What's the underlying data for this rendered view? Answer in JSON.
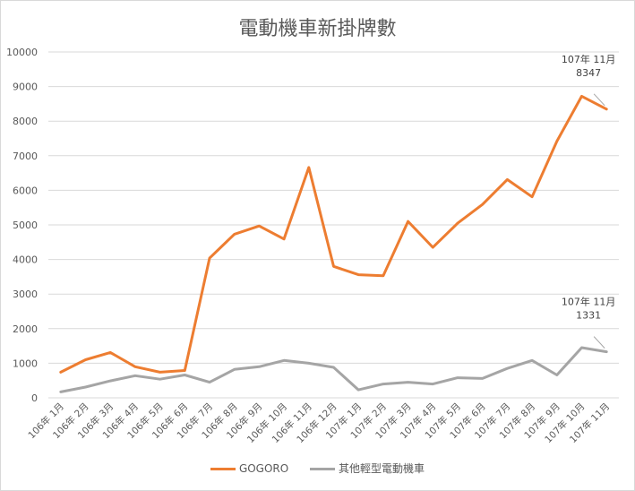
{
  "chart_data": {
    "type": "line",
    "title": "電動機車新掛牌數",
    "ylim": [
      0,
      10000
    ],
    "yticks": [
      0,
      1000,
      2000,
      3000,
      4000,
      5000,
      6000,
      7000,
      8000,
      9000,
      10000
    ],
    "grid": true,
    "legend_position": "bottom",
    "categories": [
      "106年 1月",
      "106年 2月",
      "106年 3月",
      "106年 4月",
      "106年 5月",
      "106年 6月",
      "106年 7月",
      "106年 8月",
      "106年 9月",
      "106年 10月",
      "106年 11月",
      "106年 12月",
      "107年 1月",
      "107年 2月",
      "107年 3月",
      "107年 4月",
      "107年 5月",
      "107年 6月",
      "107年 7月",
      "107年 8月",
      "107年 9月",
      "107年 10月",
      "107年 11月"
    ],
    "series": [
      {
        "name": "GOGORO",
        "color": "#ed7d31",
        "values": [
          740,
          1100,
          1310,
          900,
          740,
          790,
          4040,
          4730,
          4970,
          4590,
          6660,
          3800,
          3560,
          3530,
          5100,
          4350,
          5050,
          5590,
          6310,
          5810,
          7420,
          8720,
          8347
        ]
      },
      {
        "name": "其他輕型電動機車",
        "color": "#a5a5a5",
        "values": [
          170,
          310,
          490,
          640,
          540,
          660,
          450,
          820,
          900,
          1080,
          1000,
          880,
          230,
          400,
          450,
          400,
          580,
          560,
          850,
          1080,
          660,
          1450,
          1331
        ]
      }
    ],
    "annotations": [
      {
        "series": 0,
        "index": 22,
        "line1": "107年 11月",
        "line2": "8347"
      },
      {
        "series": 1,
        "index": 22,
        "line1": "107年 11月",
        "line2": "1331"
      }
    ]
  }
}
